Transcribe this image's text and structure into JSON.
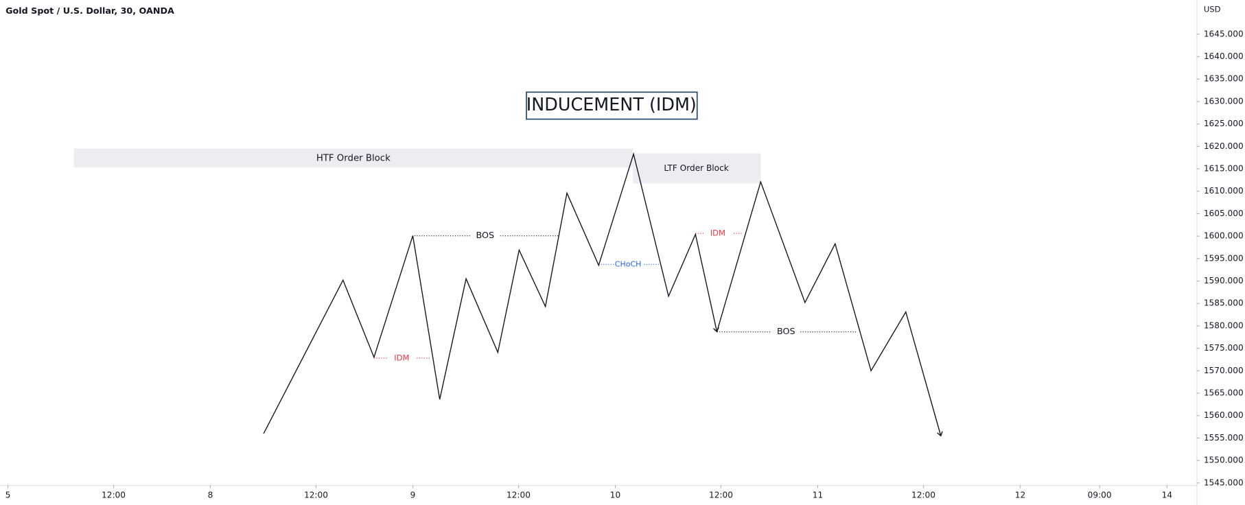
{
  "chart_data": {
    "type": "line",
    "title": "Gold Spot / U.S. Dollar, 30, OANDA",
    "y_axis_label": "USD",
    "x": [
      1.263,
      1.655,
      1.808,
      2.0,
      2.133,
      2.263,
      2.42,
      2.525,
      2.655,
      2.761,
      2.918,
      3.09,
      3.263,
      3.396,
      3.502,
      3.718,
      3.937,
      4.086,
      4.263,
      4.435,
      4.608
    ],
    "values": [
      1556.0,
      1590.2,
      1573.0,
      1600.1,
      1563.6,
      1590.5,
      1574.1,
      1596.9,
      1584.3,
      1609.6,
      1593.5,
      1618.3,
      1586.6,
      1600.4,
      1578.7,
      1612.1,
      1585.2,
      1598.3,
      1570.0,
      1583.1,
      1555.5
    ],
    "color": "#131722",
    "xlim": [
      -0.039,
      5.871
    ],
    "xticks": [
      {
        "value": 0,
        "label": "5"
      },
      {
        "value": 0.522,
        "label": "12:00"
      },
      {
        "value": 1.0,
        "label": "8"
      },
      {
        "value": 1.522,
        "label": "12:00"
      },
      {
        "value": 2.0,
        "label": "9"
      },
      {
        "value": 2.522,
        "label": "12:00"
      },
      {
        "value": 3.0,
        "label": "10"
      },
      {
        "value": 3.522,
        "label": "12:00"
      },
      {
        "value": 4.0,
        "label": "11"
      },
      {
        "value": 4.522,
        "label": "12:00"
      },
      {
        "value": 5.0,
        "label": "12"
      },
      {
        "value": 5.392,
        "label": "09:00"
      },
      {
        "value": 5.725,
        "label": "14"
      }
    ],
    "ylim": [
      1545,
      1652.6
    ],
    "yticks": [
      {
        "value": 1545,
        "label": "1545.000"
      },
      {
        "value": 1550,
        "label": "1550.000"
      },
      {
        "value": 1555,
        "label": "1555.000"
      },
      {
        "value": 1560,
        "label": "1560.000"
      },
      {
        "value": 1565,
        "label": "1565.000"
      },
      {
        "value": 1570,
        "label": "1570.000"
      },
      {
        "value": 1575,
        "label": "1575.000"
      },
      {
        "value": 1580,
        "label": "1580.000"
      },
      {
        "value": 1585,
        "label": "1585.000"
      },
      {
        "value": 1590,
        "label": "1590.000"
      },
      {
        "value": 1595,
        "label": "1595.000"
      },
      {
        "value": 1600,
        "label": "1600.000"
      },
      {
        "value": 1605,
        "label": "1605.000"
      },
      {
        "value": 1610,
        "label": "1610.000"
      },
      {
        "value": 1615,
        "label": "1615.000"
      },
      {
        "value": 1620,
        "label": "1620.000"
      },
      {
        "value": 1625,
        "label": "1625.000"
      },
      {
        "value": 1630,
        "label": "1630.000"
      },
      {
        "value": 1635,
        "label": "1635.000"
      },
      {
        "value": 1640,
        "label": "1640.000"
      },
      {
        "value": 1645,
        "label": "1645.000"
      }
    ],
    "annotations": [
      {
        "text": "INDUCEMENT (IDM)",
        "kind": "boxed-title"
      },
      {
        "text": "HTF Order Block",
        "kind": "zone"
      },
      {
        "text": "LTF Order Block",
        "kind": "zone"
      },
      {
        "text": "BOS",
        "kind": "level",
        "color": "#131722"
      },
      {
        "text": "IDM",
        "kind": "level",
        "color": "#f23645"
      },
      {
        "text": "CHoCH",
        "kind": "level",
        "color": "#2962ff"
      },
      {
        "text": "IDM",
        "kind": "level",
        "color": "#f23645"
      },
      {
        "text": "BOS",
        "kind": "level",
        "color": "#131722"
      }
    ]
  }
}
